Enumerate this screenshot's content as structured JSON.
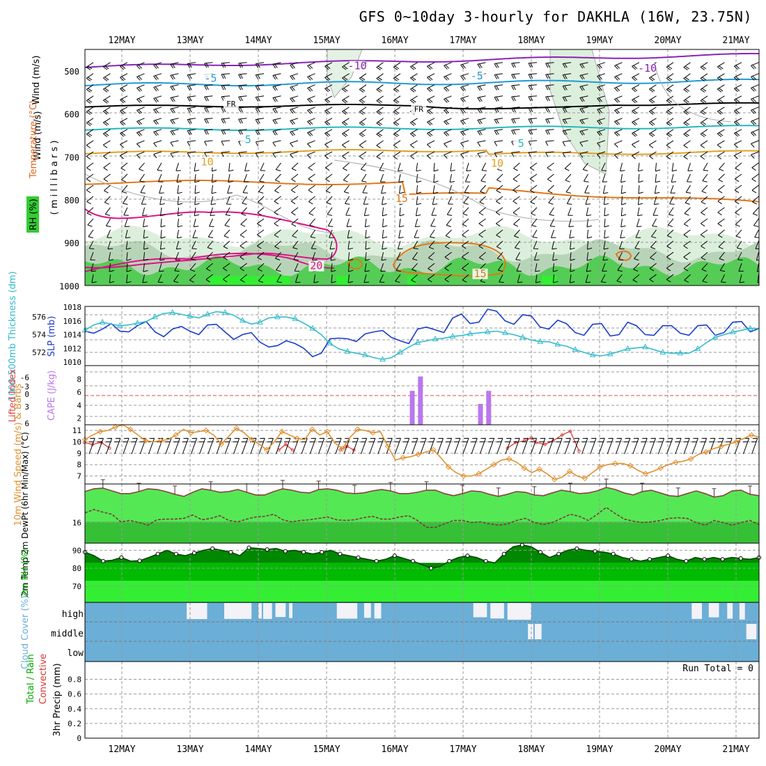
{
  "title": "GFS 0~10day 3-hourly for DAKHLA (16W, 23.75N)",
  "dates": [
    "12MAY",
    "13MAY",
    "14MAY",
    "15MAY",
    "16MAY",
    "17MAY",
    "18MAY",
    "19MAY",
    "20MAY",
    "21MAY"
  ],
  "colors": {
    "sky": "#6baed6",
    "green_light": "#33ee33",
    "green_mid": "#00bb00",
    "green_dark": "#008800",
    "t2m_fill": "#55e855",
    "t2m_dark": "#33bb33",
    "slp": "#1a3ccc",
    "thick": "#33bbcc",
    "cape": "#bb77ee",
    "li": "#dd4444",
    "wind": "#e09030",
    "purple": "#8822bb",
    "blue5": "#1e9ad6",
    "cyan5": "#22b8c0",
    "orange10": "#e0a020",
    "orange15": "#e07818",
    "pink20": "#dd1188"
  },
  "chart_data": [
    {
      "type": "heatmap",
      "name": "upper-air",
      "ylabel_parts": [
        "Wind (m/s)",
        "Temperature (°C)",
        "RH (%)"
      ],
      "ylabel_unit": "( m i l l i b a r s )",
      "y_ticks": [
        500,
        600,
        700,
        800,
        900,
        1000
      ],
      "isotherm_labels": [
        {
          "value": "-10",
          "day": 3.45,
          "p": 491
        },
        {
          "value": "-10",
          "day": 7.7,
          "p": 497
        },
        {
          "value": "-5",
          "day": 1.3,
          "p": 520
        },
        {
          "value": "-5",
          "day": 5.2,
          "p": 515
        },
        {
          "value": "FR",
          "day": 1.6,
          "p": 578
        },
        {
          "value": "FR",
          "day": 4.35,
          "p": 590
        },
        {
          "value": "5",
          "day": 1.85,
          "p": 663
        },
        {
          "value": "5",
          "day": 5.85,
          "p": 672
        },
        {
          "value": "10",
          "day": 1.25,
          "p": 715
        },
        {
          "value": "10",
          "day": 5.5,
          "p": 718
        },
        {
          "value": "15",
          "day": 4.1,
          "p": 800
        },
        {
          "value": "15",
          "day": 5.25,
          "p": 975
        },
        {
          "value": "20",
          "day": 2.85,
          "p": 957
        }
      ]
    },
    {
      "type": "line",
      "name": "slp-thickness",
      "ylabel_left": "1000-500mb Thickness (dm)",
      "ylabel_right": "SLP (mb)",
      "thickness_ticks": [
        572,
        574,
        576
      ],
      "slp_ticks": [
        1010,
        1012,
        1014,
        1016,
        1018
      ],
      "thickness": [
        574.5,
        575.1,
        575.4,
        575.2,
        575.0,
        575.1,
        575.3,
        575.5,
        576.0,
        576.4,
        576.5,
        576.3,
        576.1,
        575.9,
        576.3,
        576.6,
        576.5,
        576.2,
        575.6,
        575.2,
        575.4,
        575.9,
        576.0,
        576.0,
        575.8,
        575.3,
        574.7,
        574.0,
        573.0,
        572.4,
        572.1,
        571.9,
        571.7,
        571.4,
        571.2,
        571.4,
        572.0,
        572.6,
        573.1,
        573.3,
        573.5,
        573.6,
        573.8,
        573.9,
        574.1,
        574.2,
        574.3,
        574.4,
        574.2,
        574.0,
        573.7,
        573.4,
        573.2,
        573.2,
        572.9,
        572.7,
        572.3,
        572.0,
        571.7,
        571.6,
        571.8,
        572.1,
        572.4,
        572.5,
        572.6,
        572.3,
        572.0,
        571.9,
        571.9,
        571.9,
        572.4,
        573.1,
        573.7,
        574.0,
        574.3,
        574.5,
        574.7,
        574.7
      ],
      "slp": [
        1014.5,
        1014.2,
        1014.8,
        1015.6,
        1014.5,
        1014.4,
        1015.3,
        1015.9,
        1014.4,
        1013.7,
        1014.8,
        1015.2,
        1014.5,
        1014.0,
        1015.4,
        1015.5,
        1014.4,
        1013.3,
        1014.0,
        1014.3,
        1012.9,
        1012.2,
        1012.4,
        1013.1,
        1012.7,
        1012.0,
        1010.8,
        1011.3,
        1013.4,
        1013.5,
        1013.4,
        1013.0,
        1014.1,
        1014.4,
        1014.6,
        1013.6,
        1013.1,
        1012.7,
        1014.8,
        1015.1,
        1014.7,
        1014.3,
        1016.4,
        1017.0,
        1015.6,
        1015.8,
        1017.7,
        1017.4,
        1016.0,
        1015.5,
        1016.9,
        1016.7,
        1015.1,
        1014.8,
        1016.1,
        1015.6,
        1014.3,
        1013.9,
        1015.5,
        1015.6,
        1013.8,
        1014.0,
        1015.8,
        1015.3,
        1014.0,
        1013.9,
        1015.3,
        1015.3,
        1014.2,
        1013.9,
        1015.3,
        1015.4,
        1013.9,
        1014.3,
        1015.8,
        1015.9,
        1014.4,
        1014.9
      ]
    },
    {
      "type": "bar",
      "name": "cape-li",
      "ylabel_left": "Lifted Index",
      "ylabel_right": "CAPE (J/kg)",
      "li_ticks": [
        "-6",
        "-3",
        "0",
        "3",
        "6"
      ],
      "cape_ticks": [
        2,
        4,
        6,
        8
      ],
      "cape_bars": [
        {
          "day": 4.25,
          "value": 6.2
        },
        {
          "day": 4.37,
          "value": 8.4
        },
        {
          "day": 5.25,
          "value": 4.2
        },
        {
          "day": 5.37,
          "value": 6.2
        }
      ],
      "li_day": [
        0.0,
        0.12,
        0.25,
        0.37,
        2.85,
        2.95,
        3.05,
        3.75,
        3.85,
        3.95,
        6.2,
        6.32,
        6.45,
        6.55,
        6.62,
        6.75,
        6.87,
        7.0,
        7.12,
        7.25
      ],
      "li_value": [
        5.0,
        5.2,
        5.0,
        5.6,
        5.8,
        5.2,
        5.8,
        5.8,
        5.4,
        5.8,
        5.6,
        5.0,
        4.8,
        4.5,
        5.0,
        5.2,
        4.8,
        4.2,
        3.8,
        5.9
      ]
    },
    {
      "type": "line",
      "name": "wind-10m",
      "ylabel": "10m Wind Speed (m/s) & Barbs",
      "y_ticks": [
        7,
        8,
        9,
        10,
        11
      ],
      "values": [
        10.2,
        10.6,
        10.9,
        11.0,
        11.3,
        11.5,
        11.1,
        10.6,
        10.1,
        10.0,
        10.1,
        10.2,
        10.6,
        11.1,
        10.8,
        10.9,
        11.0,
        10.6,
        9.8,
        10.5,
        11.2,
        10.8,
        10.2,
        9.8,
        9.3,
        10.0,
        10.9,
        10.6,
        10.3,
        10.2,
        11.1,
        10.6,
        10.9,
        9.9,
        9.4,
        10.4,
        11.1,
        11.0,
        10.8,
        10.9,
        9.6,
        8.4,
        8.6,
        8.7,
        8.9,
        9.1,
        9.3,
        8.6,
        7.8,
        7.3,
        7.0,
        7.0,
        7.2,
        7.6,
        8.0,
        8.4,
        8.5,
        8.2,
        7.7,
        7.3,
        7.6,
        7.2,
        6.7,
        6.9,
        7.4,
        7.0,
        6.8,
        7.3,
        7.8,
        8.0,
        8.1,
        8.1,
        7.9,
        7.5,
        7.2,
        7.4,
        7.7,
        8.0,
        8.2,
        8.3,
        8.5,
        8.9,
        9.1,
        9.4,
        9.6,
        9.8,
        10.0,
        10.3,
        10.6,
        10.4
      ]
    },
    {
      "type": "area",
      "name": "temp-2m",
      "ylabel": "2m Temp 2m DewPt (6hr Min/Max) (°C)",
      "y_ticks": [
        16
      ],
      "temp": [
        20.5,
        20.9,
        21.0,
        20.6,
        20.2,
        20.2,
        20.5,
        20.9,
        20.8,
        20.5,
        20.1,
        19.8,
        20.4,
        20.9,
        20.7,
        20.4,
        20.5,
        20.8,
        20.4,
        20.0,
        20.0,
        20.5,
        20.9,
        20.7,
        20.4,
        20.3,
        20.8,
        20.9,
        20.7,
        20.3,
        20.2,
        20.3,
        20.6,
        20.8,
        20.6,
        20.2,
        20.2,
        20.4,
        20.7,
        20.7,
        20.2,
        19.9,
        20.2,
        20.6,
        20.5,
        20.1,
        19.8,
        20.1,
        20.5,
        20.4,
        20.0,
        19.9,
        20.3,
        20.7,
        20.5,
        20.2,
        20.3,
        20.6,
        21.1,
        20.8,
        20.3,
        20.0,
        20.5,
        20.7,
        20.3,
        19.9,
        19.8,
        20.2,
        20.6,
        20.2,
        19.7,
        19.9,
        20.6,
        20.7,
        20.1,
        19.9
      ],
      "dewpt": [
        17.4,
        17.9,
        17.5,
        17.2,
        16.1,
        16.3,
        16.0,
        15.6,
        16.4,
        16.5,
        16.5,
        16.6,
        17.1,
        16.4,
        16.6,
        17.0,
        16.3,
        16.1,
        16.5,
        16.8,
        16.9,
        17.2,
        16.4,
        16.1,
        16.3,
        16.4,
        16.6,
        16.8,
        16.4,
        16.3,
        16.4,
        16.7,
        16.9,
        16.5,
        16.5,
        16.8,
        17.0,
        16.3,
        15.3,
        15.3,
        15.8,
        16.3,
        16.3,
        16.0,
        16.1,
        15.8,
        15.6,
        15.8,
        16.3,
        16.6,
        16.0,
        15.7,
        16.0,
        16.6,
        17.2,
        16.9,
        16.3,
        17.2,
        18.2,
        17.3,
        16.5,
        16.2,
        16.0,
        16.1,
        16.3,
        16.6,
        16.7,
        16.6,
        16.0,
        15.6,
        16.3,
        16.0,
        15.6,
        16.0,
        16.3,
        15.7
      ]
    },
    {
      "type": "area",
      "name": "rh-2m",
      "ylabel": "2m RH (%)",
      "y_ticks": [
        70,
        80,
        90
      ],
      "values": [
        89.0,
        87.0,
        84.0,
        84.5,
        86.0,
        84.0,
        84.2,
        86.0,
        88.0,
        90.0,
        88.0,
        87.0,
        88.5,
        90.0,
        91.0,
        90.0,
        89.0,
        87.0,
        91.5,
        91.0,
        90.5,
        91.0,
        89.5,
        90.0,
        89.0,
        88.0,
        89.0,
        90.0,
        88.0,
        87.0,
        86.0,
        85.0,
        84.0,
        85.0,
        87.0,
        85.5,
        84.0,
        82.0,
        80.0,
        81.0,
        84.0,
        86.0,
        87.0,
        86.0,
        84.0,
        83.0,
        88.0,
        92.0,
        93.0,
        92.0,
        89.0,
        86.0,
        88.0,
        90.0,
        91.0,
        90.0,
        89.5,
        89.0,
        88.0,
        86.0,
        85.0,
        84.0,
        85.0,
        86.0,
        87.0,
        85.0,
        84.0,
        86.0,
        85.0,
        86.0,
        85.0,
        86.0,
        85.5,
        85.0,
        86.0
      ]
    },
    {
      "type": "area",
      "name": "cloud-cover",
      "ylabel": "Cloud Cover (%)",
      "levels": [
        "high",
        "middle",
        "low"
      ],
      "high_gaps": [
        [
          1.0,
          1.3
        ],
        [
          1.55,
          1.95
        ],
        [
          2.05,
          2.1
        ],
        [
          2.12,
          2.25
        ],
        [
          2.3,
          2.45
        ],
        [
          2.5,
          2.55
        ],
        [
          3.2,
          3.5
        ],
        [
          3.6,
          3.7
        ],
        [
          3.75,
          3.85
        ],
        [
          5.2,
          5.4
        ],
        [
          5.45,
          5.65
        ],
        [
          5.7,
          6.05
        ],
        [
          8.4,
          8.55
        ],
        [
          8.65,
          8.8
        ],
        [
          8.92,
          9.0
        ],
        [
          9.1,
          9.18
        ]
      ],
      "mid_gaps": [
        [
          6.0,
          6.08
        ],
        [
          6.1,
          6.2
        ],
        [
          9.2,
          9.35
        ]
      ]
    },
    {
      "type": "bar",
      "name": "precip-3hr",
      "ylabel": "3hr Precip (mm)",
      "legend": [
        "Total / Rain",
        "Convective"
      ],
      "run_total": "Run Total = 0",
      "y_ticks": [
        "0",
        "0.2",
        "0.4",
        "0.6",
        "0.8"
      ],
      "values": []
    }
  ]
}
